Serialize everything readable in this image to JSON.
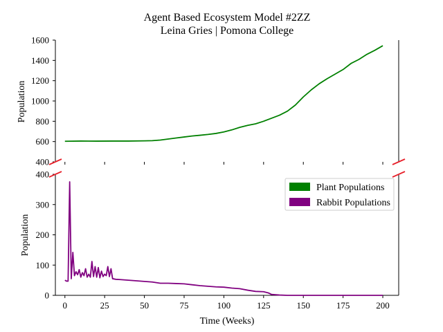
{
  "chart_data": {
    "type": "line",
    "title": "Agent Based Ecosystem Model #2ZZ",
    "subtitle": "Leina Gries | Pomona College",
    "xlabel": "Time (Weeks)",
    "ylabel": "Population",
    "xlim": [
      -6,
      210
    ],
    "x_ticks": [
      "0",
      "25",
      "50",
      "75",
      "100",
      "125",
      "150",
      "175",
      "200"
    ],
    "top_panel": {
      "ylim": [
        400,
        1600
      ],
      "y_ticks": [
        "400",
        "600",
        "800",
        "1000",
        "1200",
        "1400",
        "1600"
      ]
    },
    "bottom_panel": {
      "ylim": [
        0,
        400
      ],
      "y_ticks": [
        "0",
        "100",
        "200",
        "300",
        "400"
      ]
    },
    "legend": {
      "position": "upper-right",
      "entries": [
        "Plant Populations",
        "Rabbit Populations"
      ]
    },
    "series": [
      {
        "name": "Plant Populations",
        "color": "#008000",
        "panel": "top",
        "points": [
          [
            0,
            603
          ],
          [
            10,
            605
          ],
          [
            20,
            604
          ],
          [
            30,
            605
          ],
          [
            40,
            605
          ],
          [
            50,
            607
          ],
          [
            55,
            609
          ],
          [
            60,
            615
          ],
          [
            65,
            625
          ],
          [
            70,
            635
          ],
          [
            75,
            645
          ],
          [
            80,
            655
          ],
          [
            85,
            662
          ],
          [
            90,
            670
          ],
          [
            95,
            680
          ],
          [
            100,
            695
          ],
          [
            105,
            715
          ],
          [
            110,
            740
          ],
          [
            115,
            760
          ],
          [
            120,
            775
          ],
          [
            125,
            800
          ],
          [
            130,
            830
          ],
          [
            135,
            860
          ],
          [
            140,
            900
          ],
          [
            145,
            960
          ],
          [
            150,
            1040
          ],
          [
            155,
            1110
          ],
          [
            160,
            1170
          ],
          [
            165,
            1220
          ],
          [
            170,
            1265
          ],
          [
            175,
            1310
          ],
          [
            180,
            1370
          ],
          [
            185,
            1410
          ],
          [
            190,
            1460
          ],
          [
            195,
            1500
          ],
          [
            200,
            1545
          ]
        ]
      },
      {
        "name": "Rabbit Populations",
        "color": "#800080",
        "panel": "bottom",
        "points": [
          [
            0,
            50
          ],
          [
            1,
            47
          ],
          [
            2,
            47
          ],
          [
            3,
            375
          ],
          [
            4,
            55
          ],
          [
            5,
            142
          ],
          [
            6,
            65
          ],
          [
            7,
            78
          ],
          [
            8,
            68
          ],
          [
            9,
            85
          ],
          [
            10,
            60
          ],
          [
            11,
            75
          ],
          [
            12,
            65
          ],
          [
            13,
            88
          ],
          [
            14,
            60
          ],
          [
            15,
            70
          ],
          [
            16,
            60
          ],
          [
            17,
            112
          ],
          [
            18,
            62
          ],
          [
            19,
            95
          ],
          [
            20,
            60
          ],
          [
            21,
            92
          ],
          [
            22,
            58
          ],
          [
            23,
            80
          ],
          [
            24,
            62
          ],
          [
            25,
            70
          ],
          [
            26,
            65
          ],
          [
            27,
            95
          ],
          [
            28,
            62
          ],
          [
            29,
            88
          ],
          [
            30,
            55
          ],
          [
            32,
            53
          ],
          [
            35,
            52
          ],
          [
            40,
            50
          ],
          [
            45,
            48
          ],
          [
            50,
            46
          ],
          [
            55,
            44
          ],
          [
            60,
            40
          ],
          [
            65,
            40
          ],
          [
            70,
            39
          ],
          [
            75,
            38
          ],
          [
            80,
            35
          ],
          [
            85,
            32
          ],
          [
            90,
            30
          ],
          [
            95,
            28
          ],
          [
            100,
            27
          ],
          [
            105,
            24
          ],
          [
            110,
            22
          ],
          [
            115,
            17
          ],
          [
            120,
            13
          ],
          [
            125,
            12
          ],
          [
            128,
            8
          ],
          [
            130,
            3
          ],
          [
            135,
            1
          ],
          [
            140,
            0
          ],
          [
            150,
            0
          ],
          [
            175,
            0
          ],
          [
            200,
            0
          ]
        ]
      }
    ]
  }
}
